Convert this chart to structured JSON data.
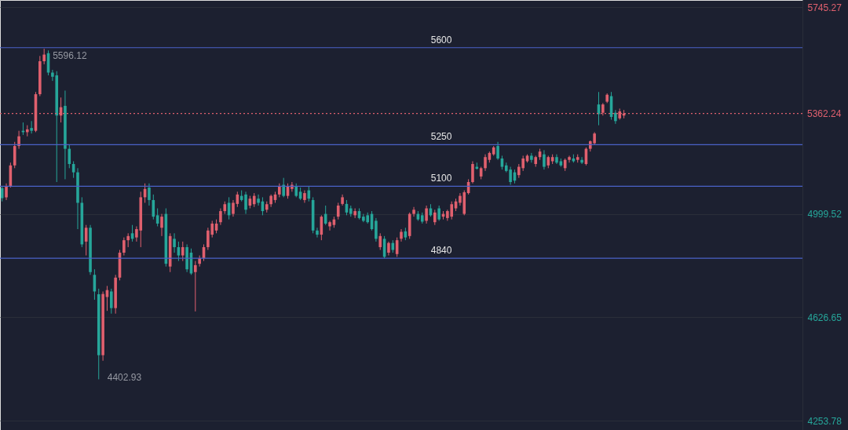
{
  "chart_data": {
    "type": "candlestick",
    "categories": [
      null,
      null,
      null,
      null,
      null,
      null,
      null,
      null,
      null,
      null,
      null,
      null,
      null,
      null,
      null,
      null,
      null,
      null,
      null,
      null,
      null,
      null,
      null,
      null,
      null,
      null,
      null,
      null,
      null,
      null,
      null,
      null,
      null,
      null,
      null,
      null,
      null,
      null,
      null,
      null,
      null,
      null,
      null,
      null,
      null,
      null,
      null,
      null,
      null,
      null,
      null,
      null,
      null,
      null,
      null,
      null,
      null,
      null,
      null,
      null,
      null,
      null,
      null,
      null,
      null,
      null,
      null,
      null,
      null,
      null,
      null,
      null,
      null,
      null,
      null,
      null,
      null,
      null,
      null,
      null,
      null,
      null,
      null,
      null,
      null,
      null,
      null,
      null,
      null,
      null,
      null,
      null,
      null,
      null,
      null,
      null,
      null,
      null,
      null,
      null,
      null,
      null,
      null,
      null,
      null,
      null,
      null,
      null,
      null,
      null,
      null,
      null,
      null,
      null,
      null,
      null,
      null,
      null,
      null,
      null,
      null,
      null,
      null,
      null,
      null,
      null,
      null,
      null,
      null,
      null,
      null,
      null,
      null,
      null,
      null,
      null,
      null,
      null,
      null,
      null,
      null,
      null,
      null,
      null,
      null,
      null,
      null,
      null,
      null,
      null,
      null,
      null,
      null,
      null,
      null,
      null,
      null,
      null,
      null,
      null,
      null,
      null,
      null,
      null,
      null,
      null,
      null,
      null,
      null,
      null,
      null,
      null,
      null,
      null,
      null,
      null,
      null,
      null,
      null,
      null,
      null,
      null,
      null,
      null,
      null,
      null,
      null,
      null,
      null,
      null,
      null
    ],
    "ohlc": [
      [
        5093,
        5100,
        5045,
        5057
      ],
      [
        5060,
        5110,
        5050,
        5100
      ],
      [
        5100,
        5185,
        5095,
        5175
      ],
      [
        5175,
        5260,
        5165,
        5245
      ],
      [
        5245,
        5300,
        5235,
        5280
      ],
      [
        5300,
        5330,
        5285,
        5295
      ],
      [
        5295,
        5320,
        5280,
        5305
      ],
      [
        5310,
        5335,
        5290,
        5300
      ],
      [
        5300,
        5440,
        5295,
        5432
      ],
      [
        5432,
        5570,
        5425,
        5551
      ],
      [
        5551,
        5596.12,
        5540,
        5575
      ],
      [
        5580,
        5590,
        5500,
        5510
      ],
      [
        5510,
        5520,
        5480,
        5495
      ],
      [
        5500,
        5515,
        5115,
        5355
      ],
      [
        5355,
        5420,
        5330,
        5385
      ],
      [
        5390,
        5445,
        5125,
        5235
      ],
      [
        5235,
        5250,
        5165,
        5180
      ],
      [
        5180,
        5190,
        5130,
        5150
      ],
      [
        5150,
        5165,
        4945,
        5040
      ],
      [
        5040,
        5060,
        4880,
        4890
      ],
      [
        4900,
        4960,
        4850,
        4950
      ],
      [
        4950,
        4960,
        4780,
        4790
      ],
      [
        4780,
        4800,
        4690,
        4720
      ],
      [
        4710,
        4730,
        4402.93,
        4490
      ],
      [
        4490,
        4720,
        4470,
        4711
      ],
      [
        4700,
        4740,
        4650,
        4725
      ],
      [
        4720,
        4730,
        4640,
        4660
      ],
      [
        4660,
        4780,
        4640,
        4770
      ],
      [
        4770,
        4870,
        4760,
        4860
      ],
      [
        4860,
        4915,
        4850,
        4905
      ],
      [
        4905,
        4930,
        4880,
        4920
      ],
      [
        4930,
        4960,
        4900,
        4910
      ],
      [
        4915,
        4955,
        4900,
        4945
      ],
      [
        4940,
        5080,
        4880,
        5060
      ],
      [
        5060,
        5110,
        5040,
        5090
      ],
      [
        5095,
        5110,
        5030,
        5050
      ],
      [
        5050,
        5070,
        4980,
        4990
      ],
      [
        4995,
        5020,
        4955,
        4965
      ],
      [
        4950,
        5000,
        4920,
        4990
      ],
      [
        5000,
        5020,
        4810,
        4820
      ],
      [
        4810,
        4930,
        4790,
        4920
      ],
      [
        4910,
        4930,
        4860,
        4880
      ],
      [
        4880,
        4900,
        4830,
        4850
      ],
      [
        4850,
        4900,
        4830,
        4880
      ],
      [
        4880,
        4890,
        4790,
        4800
      ],
      [
        4860,
        4875,
        4780,
        4785
      ],
      [
        4790,
        4830,
        4648,
        4815
      ],
      [
        4820,
        4850,
        4810,
        4840
      ],
      [
        4840,
        4890,
        4830,
        4880
      ],
      [
        4880,
        4950,
        4870,
        4940
      ],
      [
        4925,
        4975,
        4915,
        4965
      ],
      [
        4940,
        4980,
        4930,
        4965
      ],
      [
        4970,
        5020,
        4960,
        5010
      ],
      [
        5010,
        5045,
        5000,
        5035
      ],
      [
        5040,
        5060,
        4980,
        4995
      ],
      [
        5000,
        5050,
        4990,
        5040
      ],
      [
        5036,
        5080,
        5025,
        5070
      ],
      [
        5065,
        5085,
        5045,
        5050
      ],
      [
        5070,
        5080,
        5000,
        5015
      ],
      [
        5030,
        5065,
        5020,
        5055
      ],
      [
        5035,
        5075,
        5025,
        5065
      ],
      [
        5055,
        5070,
        5030,
        5040
      ],
      [
        5045,
        5060,
        4995,
        5010
      ],
      [
        5015,
        5045,
        5005,
        5035
      ],
      [
        5035,
        5070,
        5025,
        5065
      ],
      [
        5050,
        5080,
        5040,
        5070
      ],
      [
        5070,
        5110,
        5060,
        5100
      ],
      [
        5105,
        5130,
        5060,
        5065
      ],
      [
        5065,
        5110,
        5055,
        5100
      ],
      [
        5090,
        5115,
        5080,
        5105
      ],
      [
        5100,
        5110,
        5060,
        5065
      ],
      [
        5080,
        5095,
        5050,
        5055
      ],
      [
        5050,
        5085,
        5040,
        5075
      ],
      [
        5085,
        5100,
        5045,
        5055
      ],
      [
        5050,
        5060,
        4930,
        4940
      ],
      [
        4940,
        4950,
        4915,
        4925
      ],
      [
        4925,
        4995,
        4905,
        4990
      ],
      [
        5000,
        5030,
        4960,
        4965
      ],
      [
        4955,
        4975,
        4940,
        4970
      ],
      [
        4960,
        4990,
        4950,
        4980
      ],
      [
        4990,
        5040,
        4980,
        5030
      ],
      [
        5036,
        5070,
        5030,
        5060
      ],
      [
        5036,
        5050,
        4995,
        5005
      ],
      [
        5020,
        5030,
        4990,
        5000
      ],
      [
        4995,
        5020,
        4985,
        5010
      ],
      [
        5010,
        5020,
        4980,
        4985
      ],
      [
        4990,
        5000,
        4970,
        4975
      ],
      [
        4995,
        5005,
        4965,
        4970
      ],
      [
        5000,
        5010,
        4940,
        4945
      ],
      [
        4975,
        4985,
        4900,
        4910
      ],
      [
        4880,
        4930,
        4870,
        4920
      ],
      [
        4910,
        4920,
        4840,
        4845
      ],
      [
        4860,
        4900,
        4850,
        4895
      ],
      [
        4895,
        4905,
        4860,
        4870
      ],
      [
        4855,
        4915,
        4845,
        4905
      ],
      [
        4910,
        4945,
        4900,
        4935
      ],
      [
        4937,
        4950,
        4905,
        4915
      ],
      [
        4920,
        5005,
        4910,
        5000
      ],
      [
        5000,
        5025,
        4990,
        5015
      ],
      [
        5000,
        5010,
        4975,
        4980
      ],
      [
        4995,
        5005,
        4965,
        4972
      ],
      [
        4975,
        5030,
        4965,
        5020
      ],
      [
        5020,
        5035,
        4990,
        4995
      ],
      [
        4970,
        5015,
        4960,
        5005
      ],
      [
        5020,
        5030,
        4975,
        4980
      ],
      [
        4990,
        5010,
        4980,
        5000
      ],
      [
        4985,
        5015,
        4975,
        5010
      ],
      [
        4990,
        5045,
        4980,
        5035
      ],
      [
        5020,
        5055,
        5010,
        5045
      ],
      [
        5040,
        5075,
        5030,
        5065
      ],
      [
        5000,
        5085,
        4995,
        5078
      ],
      [
        5075,
        5125,
        5070,
        5115
      ],
      [
        5115,
        5190,
        5110,
        5180
      ],
      [
        5170,
        5185,
        5160,
        5163
      ],
      [
        5135,
        5170,
        5125,
        5165
      ],
      [
        5165,
        5215,
        5155,
        5205
      ],
      [
        5195,
        5225,
        5185,
        5220
      ],
      [
        5215,
        5245,
        5210,
        5240
      ],
      [
        5245,
        5260,
        5195,
        5200
      ],
      [
        5200,
        5210,
        5160,
        5170
      ],
      [
        5175,
        5185,
        5150,
        5155
      ],
      [
        5160,
        5170,
        5105,
        5115
      ],
      [
        5150,
        5160,
        5110,
        5120
      ],
      [
        5140,
        5180,
        5130,
        5170
      ],
      [
        5165,
        5210,
        5155,
        5200
      ],
      [
        5190,
        5215,
        5185,
        5210
      ],
      [
        5210,
        5220,
        5185,
        5195
      ],
      [
        5180,
        5210,
        5170,
        5205
      ],
      [
        5205,
        5235,
        5195,
        5225
      ],
      [
        5215,
        5230,
        5160,
        5170
      ],
      [
        5175,
        5210,
        5165,
        5205
      ],
      [
        5190,
        5215,
        5180,
        5205
      ],
      [
        5205,
        5215,
        5180,
        5185
      ],
      [
        5190,
        5200,
        5170,
        5175
      ],
      [
        5165,
        5200,
        5155,
        5195
      ],
      [
        5195,
        5210,
        5185,
        5205
      ],
      [
        5200,
        5215,
        5185,
        5190
      ],
      [
        5195,
        5215,
        5185,
        5205
      ],
      [
        5195,
        5205,
        5180,
        5185
      ],
      [
        5180,
        5240,
        5175,
        5235
      ],
      [
        5235,
        5265,
        5225,
        5262
      ],
      [
        5255,
        5295,
        5250,
        5290
      ],
      [
        5395,
        5440,
        5320,
        5360
      ],
      [
        5365,
        5400,
        5355,
        5395
      ],
      [
        5405,
        5435,
        5400,
        5430
      ],
      [
        5425,
        5440,
        5340,
        5350
      ],
      [
        5365,
        5375,
        5325,
        5335
      ],
      [
        5345,
        5380,
        5340,
        5370
      ],
      [
        5355,
        5375,
        5345,
        5362.24
      ],
      null,
      null,
      null,
      null,
      null,
      null,
      null,
      null,
      null,
      null,
      null,
      null,
      null,
      null,
      null,
      null,
      null,
      null,
      null,
      null,
      null,
      null,
      null,
      null,
      null,
      null,
      null,
      null,
      null,
      null,
      null,
      null,
      null,
      null,
      null,
      null,
      null,
      null,
      null,
      null,
      null,
      null
    ],
    "colors": [
      "#26a69a",
      "#e0606e",
      "#e0606e",
      "#e0606e",
      "#e0606e",
      "#26a69a",
      "#e0606e",
      "#26a69a",
      "#e0606e",
      "#e0606e",
      "#e0606e",
      "#26a69a",
      "#26a69a",
      "#26a69a",
      "#e0606e",
      "#26a69a",
      "#26a69a",
      "#26a69a",
      "#26a69a",
      "#26a69a",
      "#e0606e",
      "#26a69a",
      "#26a69a",
      "#26a69a",
      "#e0606e",
      "#e0606e",
      "#26a69a",
      "#e0606e",
      "#e0606e",
      "#e0606e",
      "#e0606e",
      "#26a69a",
      "#e0606e",
      "#e0606e",
      "#e0606e",
      "#26a69a",
      "#26a69a",
      "#26a69a",
      "#e0606e",
      "#26a69a",
      "#e0606e",
      "#26a69a",
      "#26a69a",
      "#e0606e",
      "#26a69a",
      "#26a69a",
      "#e0606e",
      "#e0606e",
      "#e0606e",
      "#e0606e",
      "#e0606e",
      "#e0606e",
      "#e0606e",
      "#e0606e",
      "#26a69a",
      "#e0606e",
      "#e0606e",
      "#26a69a",
      "#26a69a",
      "#e0606e",
      "#e0606e",
      "#26a69a",
      "#26a69a",
      "#e0606e",
      "#e0606e",
      "#e0606e",
      "#e0606e",
      "#26a69a",
      "#e0606e",
      "#e0606e",
      "#26a69a",
      "#26a69a",
      "#e0606e",
      "#26a69a",
      "#26a69a",
      "#26a69a",
      "#e0606e",
      "#26a69a",
      "#e0606e",
      "#e0606e",
      "#e0606e",
      "#e0606e",
      "#26a69a",
      "#26a69a",
      "#e0606e",
      "#26a69a",
      "#26a69a",
      "#26a69a",
      "#26a69a",
      "#26a69a",
      "#e0606e",
      "#26a69a",
      "#e0606e",
      "#26a69a",
      "#e0606e",
      "#e0606e",
      "#26a69a",
      "#e0606e",
      "#e0606e",
      "#26a69a",
      "#26a69a",
      "#e0606e",
      "#26a69a",
      "#e0606e",
      "#26a69a",
      "#e0606e",
      "#e0606e",
      "#e0606e",
      "#e0606e",
      "#e0606e",
      "#e0606e",
      "#e0606e",
      "#e0606e",
      "#26a69a",
      "#e0606e",
      "#e0606e",
      "#e0606e",
      "#e0606e",
      "#26a69a",
      "#26a69a",
      "#26a69a",
      "#26a69a",
      "#26a69a",
      "#e0606e",
      "#e0606e",
      "#e0606e",
      "#26a69a",
      "#e0606e",
      "#e0606e",
      "#26a69a",
      "#e0606e",
      "#e0606e",
      "#26a69a",
      "#26a69a",
      "#e0606e",
      "#e0606e",
      "#26a69a",
      "#e0606e",
      "#26a69a",
      "#e0606e",
      "#e0606e",
      "#e0606e",
      "#26a69a",
      "#e0606e",
      "#e0606e",
      "#26a69a",
      "#26a69a",
      "#e0606e",
      "#e0606e",
      null,
      null,
      null,
      null,
      null,
      null,
      null,
      null,
      null,
      null,
      null,
      null,
      null,
      null,
      null,
      null,
      null,
      null,
      null,
      null,
      null,
      null,
      null,
      null,
      null,
      null,
      null,
      null,
      null,
      null,
      null,
      null,
      null,
      null,
      null,
      null,
      null,
      null,
      null,
      null,
      null,
      null
    ],
    "ylim": [
      4220,
      5772
    ],
    "yticks": [
      4253.78,
      4626.65,
      4999.52,
      5745.27
    ],
    "tick_labels": "y",
    "grid": "y",
    "ref_lines": [
      {
        "axis": "y",
        "value": 5600,
        "label": "5600",
        "color": "#4a62c8"
      },
      {
        "axis": "y",
        "value": 5250,
        "label": "5250",
        "color": "#4a62c8"
      },
      {
        "axis": "y",
        "value": 5100,
        "label": "5100",
        "color": "#4a62c8"
      },
      {
        "axis": "y",
        "value": 4840,
        "label": "4840",
        "color": "#4a62c8"
      },
      {
        "axis": "y",
        "value": 5362.24,
        "label": "5362.24",
        "color": "#e0606e",
        "line_style": "dotted"
      }
    ],
    "annotations": [
      {
        "text": "5596.12",
        "y": 5596.12
      },
      "4402.93"
    ]
  }
}
